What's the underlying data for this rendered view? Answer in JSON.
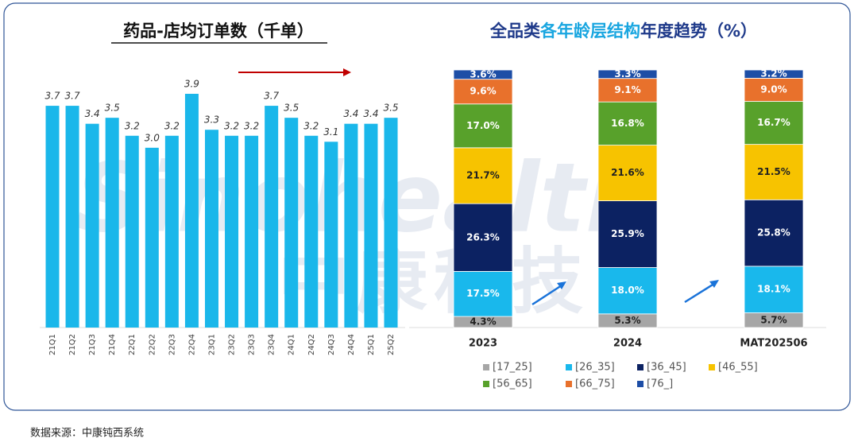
{
  "chart_data": [
    {
      "type": "bar",
      "title": "药品-店均订单数（千单）",
      "categories": [
        "21Q1",
        "21Q2",
        "21Q3",
        "21Q4",
        "22Q1",
        "22Q2",
        "22Q3",
        "22Q4",
        "23Q1",
        "23Q2",
        "23Q3",
        "23Q4",
        "24Q1",
        "24Q2",
        "24Q3",
        "24Q4",
        "25Q1",
        "25Q2"
      ],
      "values": [
        3.7,
        3.7,
        3.4,
        3.5,
        3.2,
        3.0,
        3.2,
        3.9,
        3.3,
        3.2,
        3.2,
        3.7,
        3.5,
        3.2,
        3.1,
        3.4,
        3.4,
        3.5
      ],
      "value_labels": [
        "3.7",
        "3.7",
        "3.4",
        "3.5",
        "3.2",
        "3.0",
        "3.2",
        "3.9",
        "3.3",
        "3.2",
        "3.2",
        "3.7",
        "3.5",
        "3.2",
        "3.1",
        "3.4",
        "3.4",
        "3.5"
      ],
      "color": "#1ab7ea"
    },
    {
      "type": "stacked-bar",
      "title": [
        "全品类",
        "各年龄层结构",
        "年度趋势（%）"
      ],
      "categories": [
        "2023",
        "2024",
        "MAT202506"
      ],
      "series": [
        {
          "name": "[17_25]",
          "color": "#a6a6a6",
          "values": [
            4.3,
            5.3,
            5.7
          ],
          "value_labels": [
            "4.3%",
            "5.3%",
            "5.7%"
          ]
        },
        {
          "name": "[26_35]",
          "color": "#19b8ec",
          "values": [
            17.5,
            18.0,
            18.1
          ],
          "value_labels": [
            "17.5%",
            "18.0%",
            "18.1%"
          ]
        },
        {
          "name": "[36_45]",
          "color": "#0c2262",
          "values": [
            26.3,
            25.9,
            25.8
          ],
          "value_labels": [
            "26.3%",
            "25.9%",
            "25.8%"
          ]
        },
        {
          "name": "[46_55]",
          "color": "#f7c300",
          "values": [
            21.7,
            21.6,
            21.5
          ],
          "value_labels": [
            "21.7%",
            "21.6%",
            "21.5%"
          ]
        },
        {
          "name": "[56_65]",
          "color": "#58a12b",
          "values": [
            17.0,
            16.8,
            16.7
          ],
          "value_labels": [
            "17.0%",
            "16.8%",
            "16.7%"
          ]
        },
        {
          "name": "[66_75]",
          "color": "#e8712c",
          "values": [
            9.6,
            9.1,
            9.0
          ],
          "value_labels": [
            "9.6%",
            "9.1%",
            "9.0%"
          ]
        },
        {
          "name": "[76_]",
          "color": "#1d4ea6",
          "values": [
            3.6,
            3.3,
            3.2
          ],
          "value_labels": [
            "3.6%",
            "3.3%",
            "3.2%"
          ]
        }
      ]
    }
  ],
  "watermark": [
    "Sinohealth",
    "中康科技"
  ],
  "footer": "数据来源：中康钝西系统"
}
